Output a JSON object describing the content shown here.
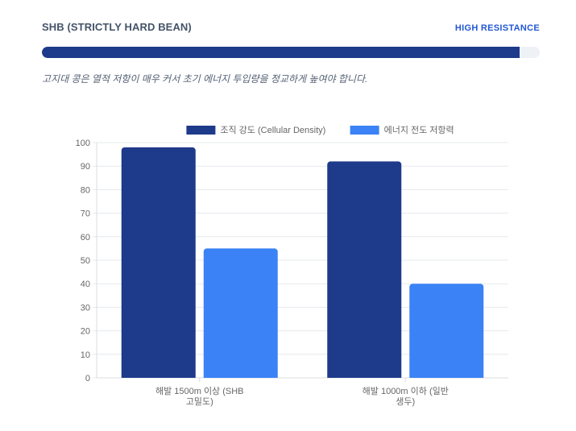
{
  "header": {
    "title": "SHB (STRICTLY HARD BEAN)",
    "badge": "HIGH RESISTANCE"
  },
  "progress": {
    "value_percent": 96,
    "color": "#1e3a8a",
    "track_color": "#eef2f7"
  },
  "description": "고지대 콩은 열적 저항이 매우 커서 초기 에너지 투입량을 정교하게 높여야 합니다.",
  "chart_data": {
    "type": "bar",
    "categories": [
      [
        "해발 1500m 이상 (SHB",
        "고밀도)"
      ],
      [
        "해발 1000m 이하 (일반",
        "생두)"
      ]
    ],
    "series": [
      {
        "name": "조직 강도 (Cellular Density)",
        "values": [
          98,
          92
        ],
        "color": "#1e3a8a"
      },
      {
        "name": "에너지 전도 저항력",
        "values": [
          55,
          40
        ],
        "color": "#3b82f6"
      }
    ],
    "ylim": [
      0,
      100
    ],
    "yticks": [
      0,
      10,
      20,
      30,
      40,
      50,
      60,
      70,
      80,
      90,
      100
    ],
    "grid": true,
    "legend": "top-center"
  }
}
